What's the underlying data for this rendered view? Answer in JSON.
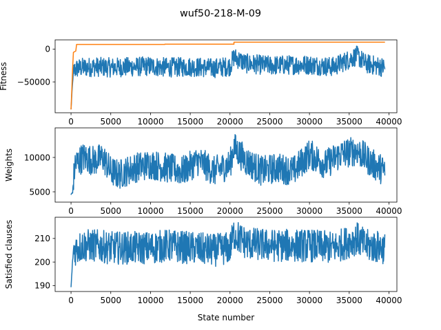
{
  "figure": {
    "title": "wuf50-218-M-09"
  },
  "chart_data": [
    {
      "type": "line",
      "title": "",
      "xlabel": "",
      "ylabel": "Fitness",
      "xlim": [
        -2000,
        41000
      ],
      "ylim": [
        -97000,
        14000
      ],
      "xticks": [
        0,
        5000,
        10000,
        15000,
        20000,
        25000,
        30000,
        35000,
        40000
      ],
      "yticks": [
        0,
        -50000
      ],
      "grid": false,
      "series": [
        {
          "color": "#1f77b4",
          "style": "noisy",
          "points": [
            [
              0,
              -92000
            ],
            [
              150,
              -60000
            ],
            [
              300,
              -35000
            ],
            [
              600,
              -30000
            ],
            [
              1500,
              -28000
            ],
            [
              3000,
              -27000
            ],
            [
              5000,
              -28000
            ],
            [
              8000,
              -27000
            ],
            [
              10000,
              -26000
            ],
            [
              12000,
              -28000
            ],
            [
              15000,
              -27000
            ],
            [
              18000,
              -29000
            ],
            [
              20000,
              -26000
            ],
            [
              20500,
              -12000
            ],
            [
              22000,
              -22000
            ],
            [
              25000,
              -25000
            ],
            [
              28000,
              -24000
            ],
            [
              30000,
              -24000
            ],
            [
              33000,
              -27000
            ],
            [
              36000,
              -10000
            ],
            [
              37000,
              -22000
            ],
            [
              39500,
              -28000
            ]
          ],
          "noise": 15000
        },
        {
          "color": "#ff7f0e",
          "style": "step",
          "points": [
            [
              0,
              -92000
            ],
            [
              100,
              -62000
            ],
            [
              200,
              -30000
            ],
            [
              300,
              -5000
            ],
            [
              600,
              -3000
            ],
            [
              700,
              7000
            ],
            [
              11800,
              7000
            ],
            [
              11800,
              7500
            ],
            [
              20500,
              7500
            ],
            [
              20500,
              10500
            ],
            [
              39500,
              10500
            ]
          ]
        }
      ]
    },
    {
      "type": "line",
      "title": "",
      "xlabel": "",
      "ylabel": "Weights",
      "xlim": [
        -2000,
        41000
      ],
      "ylim": [
        3500,
        14300
      ],
      "xticks": [
        0,
        5000,
        10000,
        15000,
        20000,
        25000,
        30000,
        35000,
        40000
      ],
      "yticks": [
        5000,
        10000
      ],
      "grid": false,
      "series": [
        {
          "color": "#1f77b4",
          "style": "noisy",
          "points": [
            [
              0,
              4500
            ],
            [
              200,
              5000
            ],
            [
              500,
              9000
            ],
            [
              1500,
              10000
            ],
            [
              3000,
              9500
            ],
            [
              4000,
              10000
            ],
            [
              5000,
              8000
            ],
            [
              6000,
              7500
            ],
            [
              8000,
              8500
            ],
            [
              10000,
              9000
            ],
            [
              12000,
              8500
            ],
            [
              14000,
              8000
            ],
            [
              16000,
              9500
            ],
            [
              18000,
              8000
            ],
            [
              20000,
              9000
            ],
            [
              20500,
              11500
            ],
            [
              22000,
              9500
            ],
            [
              24000,
              8000
            ],
            [
              26000,
              8500
            ],
            [
              28000,
              8000
            ],
            [
              30000,
              10500
            ],
            [
              32000,
              9000
            ],
            [
              34000,
              10500
            ],
            [
              36000,
              11000
            ],
            [
              38000,
              9000
            ],
            [
              39500,
              8000
            ]
          ],
          "noise": 2200
        }
      ]
    },
    {
      "type": "line",
      "title": "",
      "xlabel": "State number",
      "ylabel": "Satisfied clauses",
      "xlim": [
        -2000,
        41000
      ],
      "ylim": [
        187.5,
        219
      ],
      "xticks": [
        0,
        5000,
        10000,
        15000,
        20000,
        25000,
        30000,
        35000,
        40000
      ],
      "yticks": [
        190,
        200,
        210
      ],
      "grid": false,
      "series": [
        {
          "color": "#1f77b4",
          "style": "noisy",
          "points": [
            [
              0,
              189
            ],
            [
              150,
              198
            ],
            [
              300,
              205
            ],
            [
              1500,
              207
            ],
            [
              3000,
              207
            ],
            [
              5000,
              206
            ],
            [
              8000,
              206
            ],
            [
              10000,
              206
            ],
            [
              12000,
              207
            ],
            [
              15000,
              206
            ],
            [
              18000,
              205
            ],
            [
              20000,
              206
            ],
            [
              20500,
              212
            ],
            [
              22000,
              208
            ],
            [
              25000,
              207
            ],
            [
              28000,
              207
            ],
            [
              30000,
              207
            ],
            [
              33000,
              206
            ],
            [
              36000,
              210
            ],
            [
              37000,
              207
            ],
            [
              39500,
              206
            ]
          ],
          "noise": 7
        }
      ]
    }
  ]
}
